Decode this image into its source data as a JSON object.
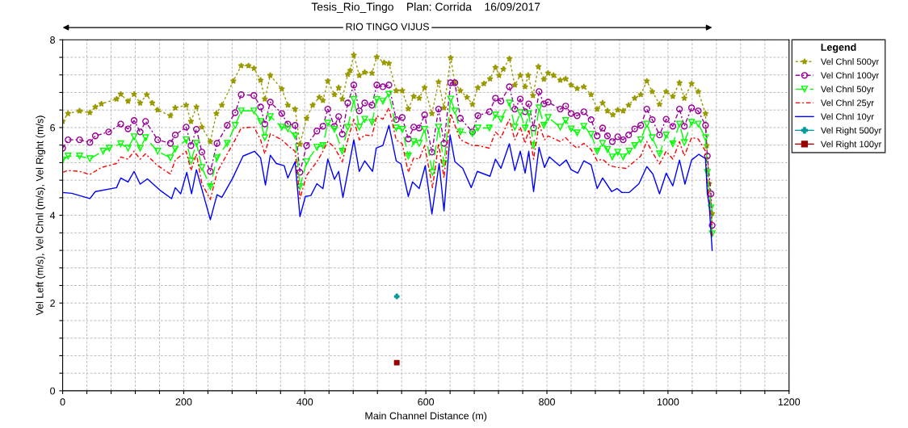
{
  "chart_data": {
    "type": "line",
    "title": "Tesis_Rio_Tingo    Plan: Corrida    16/09/2017",
    "xlabel": "Main Channel Distance (m)",
    "ylabel": "Vel Left (m/s), Vel Chnl (m/s), Vel Right (m/s)",
    "legend_title": "Legend",
    "legend": "right",
    "grid": true,
    "annotations": [
      "RIO TINGO VIJUS"
    ],
    "xlim": [
      0,
      1200
    ],
    "ylim": [
      0,
      8
    ],
    "xticks": [
      0,
      {
        "value": 40,
        "label": null
      },
      {
        "value": 80,
        "label": null
      },
      {
        "value": 120,
        "label": null
      },
      {
        "value": 160,
        "label": null
      },
      200,
      {
        "value": 240,
        "label": null
      },
      {
        "value": 280,
        "label": null
      },
      {
        "value": 320,
        "label": null
      },
      {
        "value": 360,
        "label": null
      },
      400,
      {
        "value": 440,
        "label": null
      },
      {
        "value": 480,
        "label": null
      },
      {
        "value": 520,
        "label": null
      },
      {
        "value": 560,
        "label": null
      },
      600,
      {
        "value": 640,
        "label": null
      },
      {
        "value": 680,
        "label": null
      },
      {
        "value": 720,
        "label": null
      },
      {
        "value": 760,
        "label": null
      },
      800,
      {
        "value": 840,
        "label": null
      },
      {
        "value": 880,
        "label": null
      },
      {
        "value": 920,
        "label": null
      },
      {
        "value": 960,
        "label": null
      },
      1000,
      {
        "value": 1040,
        "label": null
      },
      {
        "value": 1080,
        "label": null
      },
      {
        "value": 1120,
        "label": null
      },
      {
        "value": 1160,
        "label": null
      },
      1200
    ],
    "yticks": [
      0,
      {
        "value": 0.4,
        "label": null
      },
      {
        "value": 0.8,
        "label": null
      },
      {
        "value": 1.2,
        "label": null
      },
      {
        "value": 1.6,
        "label": null
      },
      2,
      {
        "value": 2.4,
        "label": null
      },
      {
        "value": 2.8,
        "label": null
      },
      {
        "value": 3.2,
        "label": null
      },
      {
        "value": 3.6,
        "label": null
      },
      4,
      {
        "value": 4.4,
        "label": null
      },
      {
        "value": 4.8,
        "label": null
      },
      {
        "value": 5.2,
        "label": null
      },
      {
        "value": 5.6,
        "label": null
      },
      6,
      {
        "value": 6.4,
        "label": null
      },
      {
        "value": 6.8,
        "label": null
      },
      {
        "value": 7.2,
        "label": null
      },
      {
        "value": 7.6,
        "label": null
      },
      8
    ],
    "series": [
      {
        "name": "Vel Chnl 500yr",
        "color": "#999900",
        "marker": "star",
        "line_style": "dotted",
        "x": [
          0,
          9,
          28,
          45,
          54,
          64,
          89,
          96,
          108,
          118,
          128,
          139,
          148,
          157,
          178,
          186,
          204,
          212,
          221,
          230,
          244,
          254,
          263,
          282,
          295,
          307,
          316,
          327,
          334,
          343,
          362,
          372,
          384,
          392,
          403,
          413,
          424,
          430,
          438,
          449,
          456,
          462,
          471,
          475,
          481,
          490,
          499,
          511,
          519,
          531,
          539,
          551,
          561,
          571,
          580,
          589,
          598,
          610,
          621,
          630,
          641,
          648,
          657,
          668,
          677,
          686,
          696,
          706,
          715,
          721,
          728,
          738,
          747,
          756,
          764,
          769,
          777,
          786,
          795,
          802,
          811,
          822,
          831,
          840,
          850,
          861,
          873,
          883,
          892,
          900,
          909,
          917,
          926,
          935,
          945,
          955,
          965,
          974,
          986,
          997,
          1008,
          1019,
          1027,
          1039,
          1050,
          1062,
          1064,
          1068,
          1073
        ],
        "values": [
          6.14,
          6.32,
          6.38,
          6.34,
          6.47,
          6.54,
          6.65,
          6.76,
          6.6,
          6.76,
          6.56,
          6.75,
          6.56,
          6.4,
          6.27,
          6.45,
          6.51,
          6.14,
          6.47,
          6.01,
          5.68,
          6.32,
          6.51,
          7.06,
          7.41,
          7.41,
          7.35,
          7.08,
          6.65,
          7.19,
          6.88,
          6.51,
          6.42,
          5.62,
          6.21,
          6.51,
          6.69,
          6.62,
          7.06,
          6.75,
          6.91,
          6.65,
          7.21,
          7.3,
          7.65,
          7.19,
          7.26,
          7.24,
          7.61,
          7.48,
          7.46,
          6.84,
          6.84,
          6.43,
          6.71,
          6.67,
          6.91,
          6.32,
          7.04,
          6.45,
          7.59,
          7.02,
          6.84,
          6.69,
          6.53,
          6.91,
          7.0,
          7.11,
          7.37,
          7.19,
          7.33,
          7.57,
          6.97,
          7.19,
          6.93,
          7.19,
          6.73,
          7.39,
          7.1,
          7.24,
          7.19,
          7.08,
          7.11,
          6.97,
          6.89,
          6.93,
          6.75,
          6.42,
          6.56,
          6.38,
          6.29,
          6.4,
          6.38,
          6.51,
          6.67,
          6.75,
          7.06,
          6.82,
          6.53,
          6.82,
          6.71,
          7.02,
          6.67,
          7.0,
          6.82,
          6.32,
          5.59,
          4.72,
          4.04
        ]
      },
      {
        "name": "Vel Chnl 100yr",
        "color": "#990099",
        "marker": "circle",
        "line_style": "dashed",
        "x": [
          0,
          9,
          28,
          45,
          54,
          76,
          96,
          108,
          118,
          128,
          137,
          157,
          178,
          186,
          204,
          212,
          221,
          230,
          244,
          255,
          272,
          285,
          295,
          316,
          327,
          334,
          343,
          362,
          372,
          384,
          392,
          403,
          420,
          430,
          438,
          449,
          456,
          462,
          471,
          481,
          490,
          499,
          511,
          519,
          529,
          539,
          551,
          561,
          571,
          580,
          589,
          598,
          610,
          621,
          630,
          641,
          648,
          657,
          677,
          686,
          705,
          715,
          724,
          738,
          747,
          756,
          764,
          770,
          778,
          787,
          795,
          802,
          822,
          831,
          840,
          850,
          861,
          873,
          883,
          892,
          900,
          908,
          917,
          926,
          935,
          945,
          955,
          965,
          974,
          986,
          997,
          1008,
          1019,
          1027,
          1039,
          1050,
          1062,
          1065,
          1071,
          1073
        ],
        "values": [
          5.53,
          5.72,
          5.72,
          5.66,
          5.81,
          5.9,
          6.08,
          5.97,
          6.16,
          5.9,
          6.14,
          5.72,
          5.64,
          5.83,
          6.01,
          5.59,
          5.96,
          5.44,
          5.0,
          5.64,
          6.05,
          6.34,
          6.75,
          6.73,
          6.47,
          6.08,
          6.58,
          6.32,
          6.08,
          6.05,
          4.98,
          5.59,
          5.92,
          6.03,
          6.42,
          6.03,
          6.25,
          5.85,
          6.56,
          6.97,
          6.38,
          6.56,
          6.51,
          6.97,
          6.93,
          6.97,
          6.18,
          6.23,
          5.74,
          6.01,
          5.99,
          6.29,
          5.44,
          6.42,
          5.64,
          7.02,
          7.02,
          6.21,
          5.9,
          6.27,
          6.36,
          6.67,
          6.6,
          6.93,
          6.42,
          6.65,
          6.36,
          6.54,
          5.99,
          6.82,
          6.54,
          6.58,
          6.42,
          6.49,
          6.32,
          6.27,
          6.36,
          6.18,
          5.81,
          5.99,
          5.81,
          5.68,
          5.79,
          5.72,
          5.83,
          5.97,
          6.05,
          6.42,
          6.18,
          5.83,
          6.19,
          6.03,
          6.42,
          6.03,
          6.45,
          6.38,
          6.05,
          5.35,
          4.49,
          3.77
        ]
      },
      {
        "name": "Vel Chnl 50yr",
        "color": "#00ff00",
        "marker": "triangle",
        "line_style": "dashed",
        "x": [
          0,
          9,
          28,
          45,
          67,
          77,
          96,
          108,
          118,
          128,
          137,
          157,
          178,
          186,
          204,
          212,
          221,
          230,
          244,
          255,
          272,
          285,
          295,
          316,
          327,
          334,
          343,
          362,
          372,
          384,
          392,
          403,
          420,
          430,
          438,
          449,
          462,
          471,
          481,
          490,
          499,
          511,
          519,
          529,
          539,
          551,
          561,
          571,
          580,
          589,
          598,
          611,
          621,
          630,
          641,
          648,
          657,
          677,
          686,
          705,
          715,
          724,
          738,
          747,
          756,
          764,
          770,
          778,
          787,
          795,
          802,
          822,
          831,
          840,
          850,
          861,
          873,
          883,
          892,
          900,
          908,
          917,
          926,
          936,
          945,
          955,
          965,
          974,
          986,
          997,
          1008,
          1019,
          1027,
          1039,
          1050,
          1062,
          1065,
          1071,
          1073
        ],
        "values": [
          5.26,
          5.35,
          5.35,
          5.29,
          5.46,
          5.53,
          5.63,
          5.53,
          5.79,
          5.53,
          5.77,
          5.46,
          5.31,
          5.51,
          5.72,
          5.24,
          5.64,
          5.09,
          4.65,
          5.31,
          5.64,
          6.05,
          6.38,
          6.38,
          6.14,
          5.77,
          6.25,
          6.01,
          5.97,
          5.81,
          4.65,
          5.22,
          5.55,
          5.59,
          6.1,
          5.96,
          5.46,
          6.01,
          6.64,
          6.01,
          6.19,
          6.12,
          6.64,
          6.6,
          6.76,
          5.99,
          5.96,
          5.35,
          5.68,
          5.64,
          5.96,
          4.98,
          6.01,
          5.18,
          6.65,
          6.38,
          5.9,
          5.86,
          5.99,
          5.99,
          6.29,
          6.19,
          6.56,
          6.01,
          6.34,
          5.99,
          6.32,
          5.59,
          6.45,
          6.05,
          6.23,
          6.01,
          6.16,
          5.97,
          5.88,
          6.03,
          5.85,
          5.46,
          5.64,
          5.5,
          5.33,
          5.44,
          5.33,
          5.46,
          5.59,
          5.72,
          6.08,
          5.77,
          5.4,
          5.83,
          5.63,
          6.08,
          5.66,
          6.12,
          6.08,
          5.77,
          4.98,
          4.17,
          3.58
        ]
      },
      {
        "name": "Vel Chnl 25yr",
        "color": "#ff0000",
        "marker": "none",
        "line_style": "dashed",
        "x": [
          0,
          9,
          28,
          45,
          64,
          89,
          96,
          108,
          118,
          128,
          137,
          157,
          178,
          186,
          204,
          212,
          221,
          230,
          244,
          255,
          272,
          285,
          295,
          316,
          327,
          334,
          343,
          362,
          372,
          384,
          392,
          403,
          420,
          430,
          438,
          449,
          462,
          471,
          481,
          490,
          499,
          511,
          519,
          529,
          539,
          551,
          561,
          571,
          580,
          589,
          598,
          611,
          621,
          630,
          641,
          648,
          657,
          677,
          686,
          705,
          715,
          724,
          738,
          747,
          756,
          764,
          770,
          778,
          787,
          796,
          802,
          822,
          831,
          840,
          850,
          861,
          873,
          883,
          892,
          904,
          917,
          931,
          944,
          955,
          965,
          974,
          986,
          997,
          1008,
          1019,
          1027,
          1039,
          1050,
          1062,
          1065,
          1071,
          1073
        ],
        "values": [
          4.98,
          5.02,
          5.0,
          4.93,
          5.09,
          5.18,
          5.33,
          5.28,
          5.46,
          5.28,
          5.4,
          5.13,
          4.94,
          5.26,
          5.46,
          5.02,
          5.4,
          4.72,
          4.36,
          4.98,
          5.4,
          5.72,
          5.99,
          6.01,
          5.72,
          5.4,
          5.86,
          5.72,
          5.59,
          5.46,
          4.38,
          4.91,
          5.22,
          5.46,
          5.68,
          5.55,
          5.22,
          5.72,
          6.19,
          5.72,
          5.83,
          5.81,
          6.27,
          6.19,
          6.45,
          5.72,
          5.63,
          4.98,
          5.31,
          5.28,
          5.59,
          4.63,
          5.64,
          4.85,
          6.32,
          6.05,
          5.72,
          5.59,
          5.59,
          5.53,
          5.9,
          5.77,
          6.19,
          5.72,
          6.01,
          5.64,
          5.96,
          5.28,
          6.08,
          5.72,
          5.81,
          5.68,
          5.77,
          5.63,
          5.53,
          5.64,
          5.5,
          5.24,
          5.28,
          5.13,
          5.09,
          5.07,
          5.22,
          5.35,
          5.68,
          5.44,
          5.17,
          5.46,
          5.28,
          5.68,
          5.35,
          5.77,
          5.74,
          5.46,
          4.72,
          3.99,
          3.51
        ]
      },
      {
        "name": "Vel Chnl 10yr",
        "color": "#0000ff",
        "marker": "none",
        "line_style": "solid",
        "x": [
          0,
          15,
          45,
          54,
          89,
          96,
          108,
          118,
          128,
          140,
          160,
          180,
          186,
          195,
          205,
          213,
          221,
          244,
          255,
          263,
          281,
          298,
          317,
          327,
          335,
          343,
          353,
          366,
          372,
          384,
          392,
          401,
          410,
          420,
          430,
          438,
          449,
          456,
          463,
          471,
          481,
          490,
          499,
          512,
          518,
          529,
          539,
          551,
          559,
          571,
          578,
          589,
          599,
          610,
          622,
          630,
          640,
          648,
          661,
          675,
          685,
          706,
          715,
          724,
          738,
          747,
          756,
          764,
          770,
          778,
          787,
          796,
          804,
          821,
          832,
          840,
          851,
          861,
          873,
          883,
          892,
          907,
          916,
          924,
          936,
          952,
          965,
          975,
          986,
          997,
          1008,
          1019,
          1028,
          1039,
          1051,
          1062,
          1065,
          1068,
          1073
        ],
        "values": [
          4.52,
          4.5,
          4.38,
          4.54,
          4.63,
          4.85,
          4.76,
          5.0,
          4.71,
          4.83,
          4.58,
          4.38,
          4.63,
          4.49,
          4.98,
          4.49,
          5.04,
          3.9,
          4.47,
          4.41,
          4.85,
          5.35,
          5.46,
          5.31,
          4.69,
          5.37,
          5.18,
          5.13,
          4.85,
          5.22,
          3.97,
          4.43,
          4.45,
          4.72,
          4.61,
          5.28,
          4.82,
          5.0,
          4.41,
          4.98,
          5.72,
          5.0,
          5.24,
          5.0,
          5.53,
          5.59,
          6.05,
          5.24,
          5.17,
          4.43,
          4.76,
          4.61,
          5.13,
          4.03,
          5.18,
          4.1,
          5.83,
          5.22,
          5.07,
          4.63,
          5.0,
          4.89,
          5.28,
          5.07,
          5.63,
          5.02,
          5.46,
          4.96,
          5.46,
          4.54,
          5.55,
          5.09,
          5.33,
          5.13,
          5.26,
          5.04,
          4.96,
          5.24,
          5.15,
          4.61,
          4.85,
          4.54,
          4.61,
          4.52,
          4.52,
          4.72,
          5.11,
          4.94,
          4.49,
          4.96,
          4.67,
          5.26,
          4.71,
          5.26,
          5.39,
          5.29,
          4.49,
          4.25,
          3.2
        ]
      },
      {
        "name": "Vel Right 500yr",
        "type": "scatter",
        "color": "#009999",
        "marker": "cross",
        "x": [
          552
        ],
        "values": [
          2.15
        ]
      },
      {
        "name": "Vel Right 100yr",
        "type": "scatter",
        "color": "#990000",
        "marker": "square",
        "x": [
          552
        ],
        "values": [
          0.64
        ]
      }
    ]
  }
}
